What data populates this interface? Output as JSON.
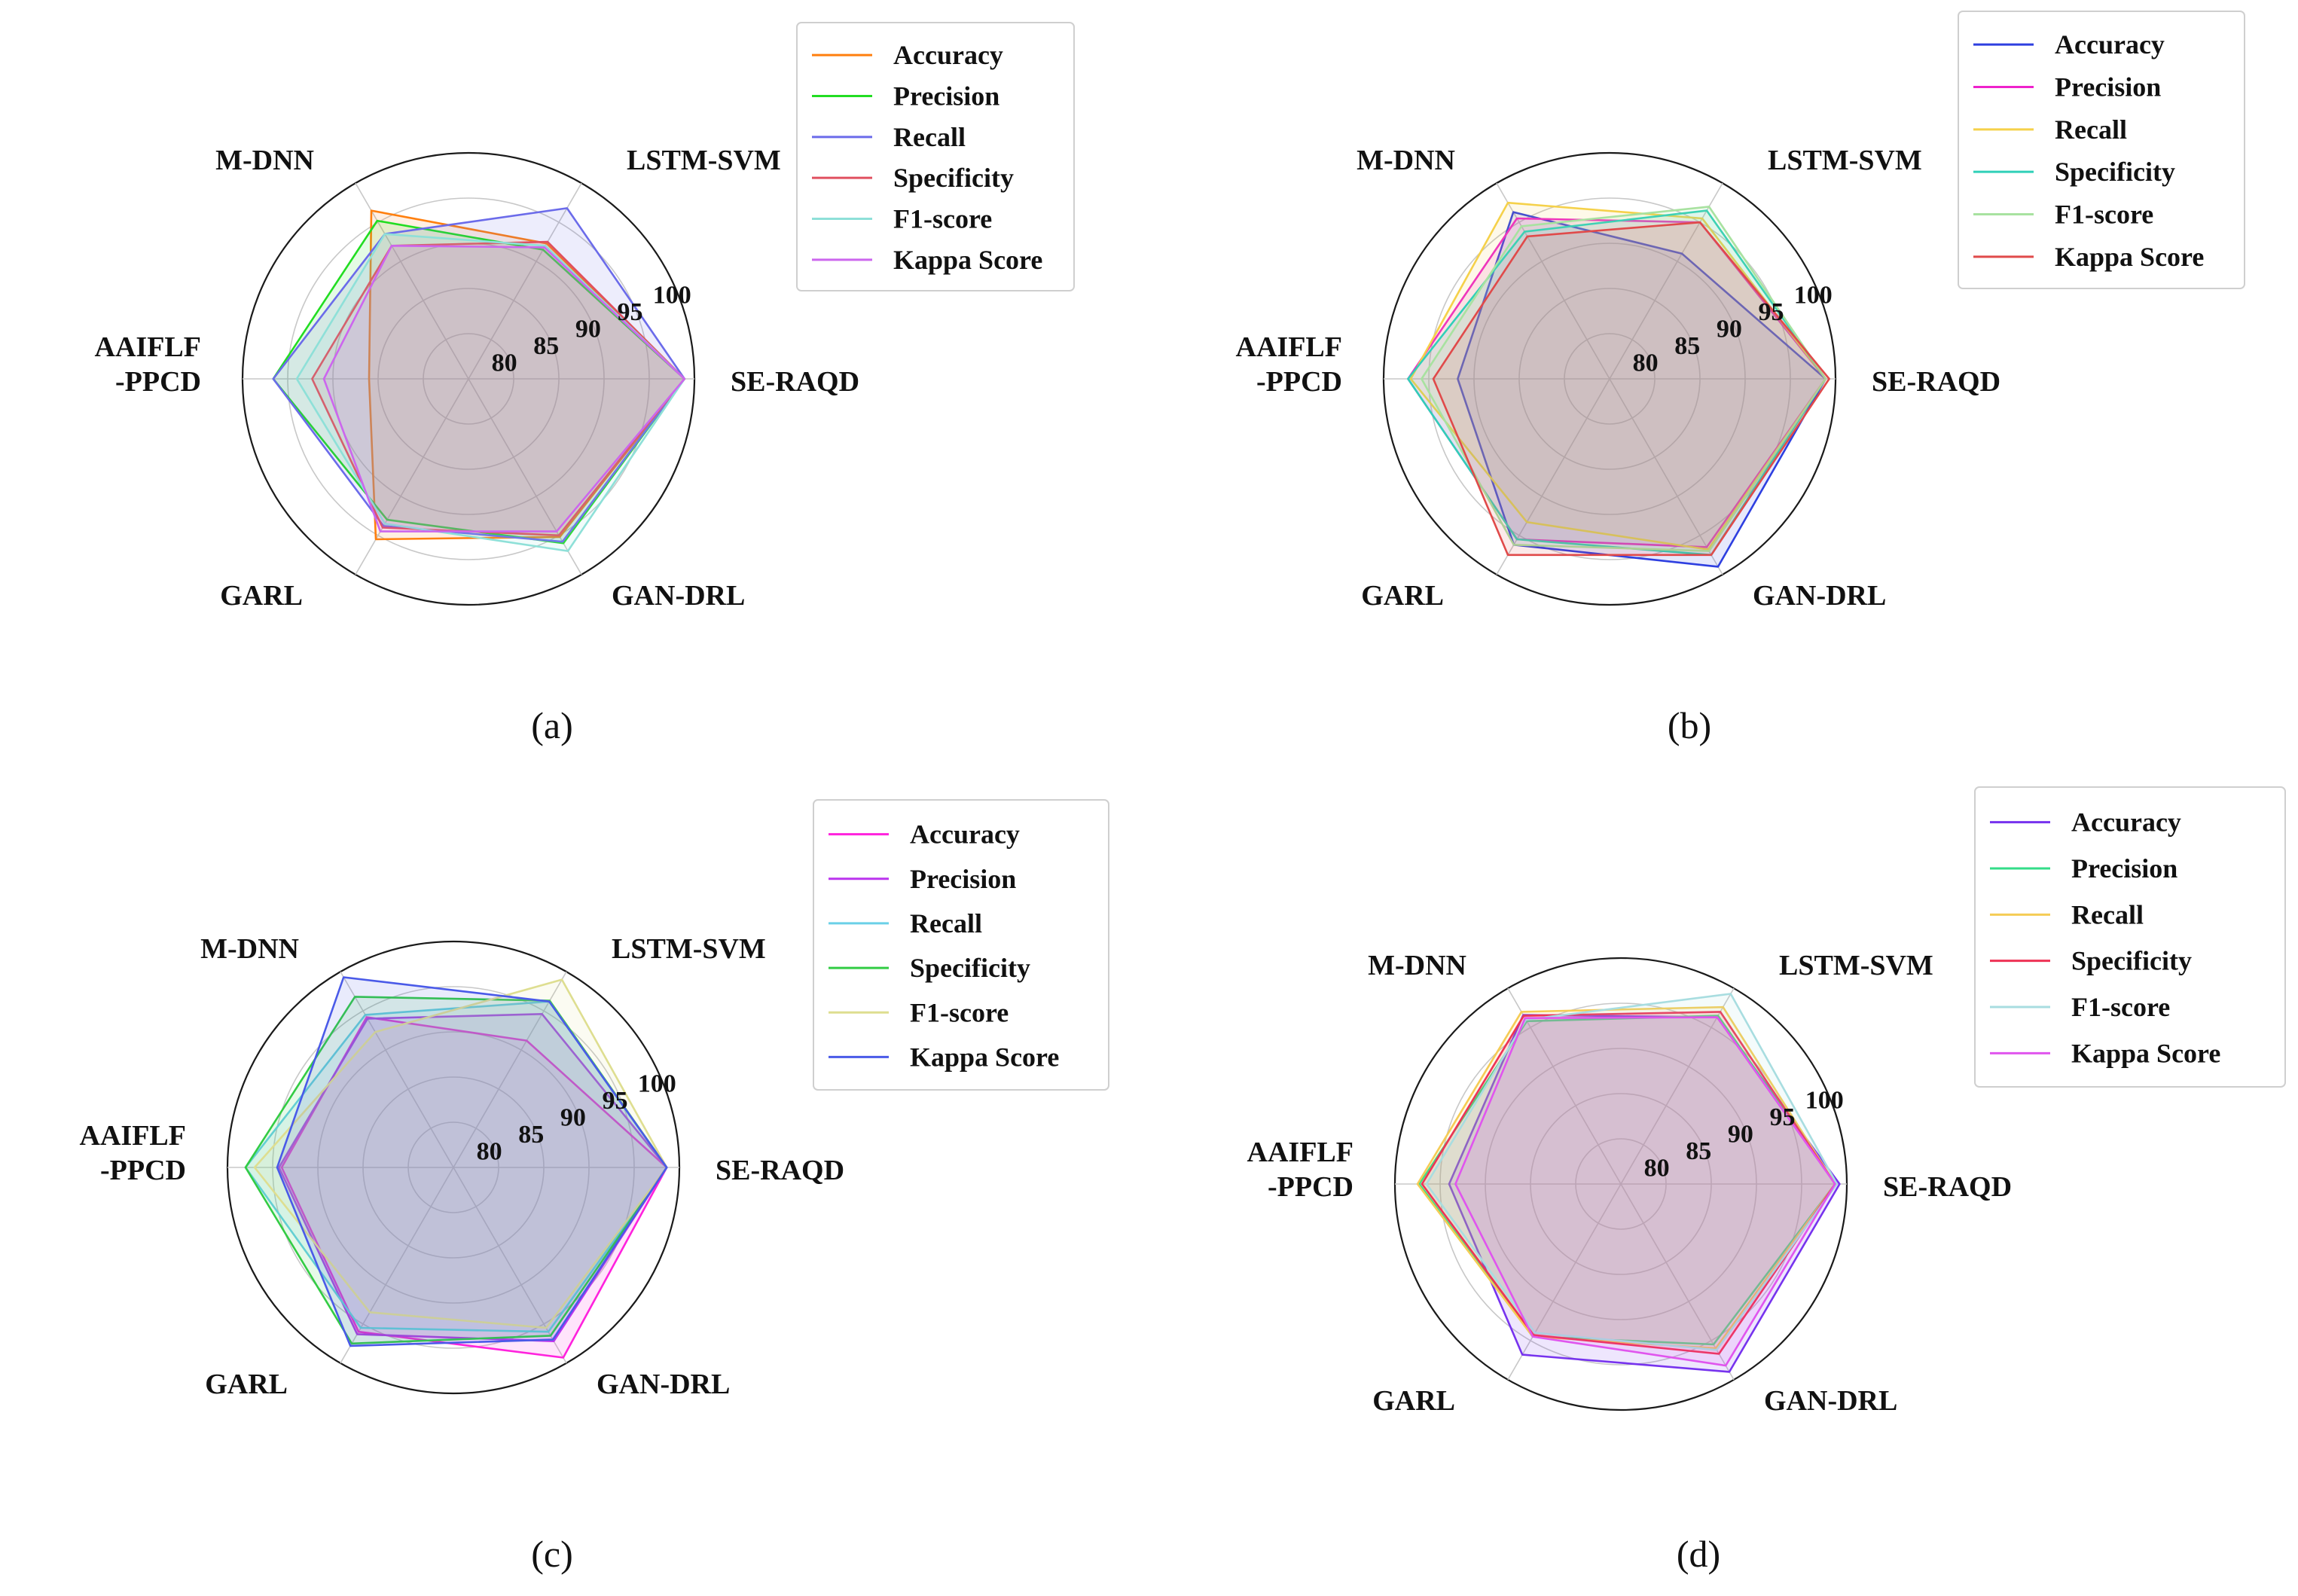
{
  "panels": [
    {
      "caption": "(a)",
      "chart_data": {
        "type": "radar",
        "categories": [
          "SE-RAQD",
          "LSTM-SVM",
          "M-DNN",
          "AAIFLF\n-PPCD",
          "GARL",
          "GAN-DRL"
        ],
        "rlim": [
          75,
          100
        ],
        "radial_tick_labels": [
          "80",
          "85",
          "90",
          "95",
          "100"
        ],
        "radial_tick_values": [
          80,
          85,
          90,
          95,
          100
        ],
        "grid": true,
        "legend_position": "top-right",
        "series": [
          {
            "name": "Accuracy",
            "color": "#ff7f0e",
            "values": [
              98.9,
              92.3,
              96.5,
              86.0,
              95.5,
              95.2
            ]
          },
          {
            "name": "Precision",
            "color": "#22dd22",
            "values": [
              98.9,
              91.5,
              95.2,
              96.6,
              93.0,
              96.0
            ]
          },
          {
            "name": "Recall",
            "color": "#6b6bea",
            "values": [
              98.9,
              96.8,
              93.5,
              96.6,
              93.8,
              95.8
            ]
          },
          {
            "name": "Specificity",
            "color": "#e05060",
            "values": [
              98.9,
              92.5,
              92.0,
              92.3,
              94.0,
              95.0
            ]
          },
          {
            "name": "F1-score",
            "color": "#8ee0d8",
            "values": [
              98.9,
              92.0,
              93.5,
              94.0,
              93.5,
              97.0
            ]
          },
          {
            "name": "Kappa Score",
            "color": "#cc66ee",
            "values": [
              98.9,
              91.8,
              92.0,
              91.0,
              94.5,
              94.5
            ]
          }
        ]
      }
    },
    {
      "caption": "(b)",
      "chart_data": {
        "type": "radar",
        "categories": [
          "SE-RAQD",
          "LSTM-SVM",
          "M-DNN",
          "AAIFLF\n-PPCD",
          "GARL",
          "GAN-DRL"
        ],
        "rlim": [
          75,
          100
        ],
        "radial_tick_labels": [
          "80",
          "85",
          "90",
          "95",
          "100"
        ],
        "radial_tick_values": [
          80,
          85,
          90,
          95,
          100
        ],
        "grid": true,
        "legend_position": "top-right",
        "series": [
          {
            "name": "Accuracy",
            "color": "#2e3fe0",
            "values": [
              98.9,
              91.0,
              96.3,
              91.8,
              96.2,
              99.0
            ]
          },
          {
            "name": "Precision",
            "color": "#ee22cc",
            "values": [
              98.9,
              95.0,
              95.5,
              97.3,
              95.5,
              96.5
            ]
          },
          {
            "name": "Recall",
            "color": "#f5d14a",
            "values": [
              98.9,
              95.5,
              97.5,
              97.0,
              93.3,
              96.8
            ]
          },
          {
            "name": "Specificity",
            "color": "#30d0b8",
            "values": [
              98.9,
              96.5,
              93.8,
              97.3,
              95.5,
              97.5
            ]
          },
          {
            "name": "F1-score",
            "color": "#a8e2a0",
            "values": [
              98.9,
              97.0,
              94.5,
              95.8,
              96.2,
              97.0
            ]
          },
          {
            "name": "Kappa Score",
            "color": "#e04a4a",
            "values": [
              99.3,
              95.0,
              93.2,
              94.5,
              97.5,
              97.5
            ]
          }
        ]
      }
    },
    {
      "caption": "(c)",
      "chart_data": {
        "type": "radar",
        "categories": [
          "SE-RAQD",
          "LSTM-SVM",
          "M-DNN",
          "AAIFLF\n-PPCD",
          "GARL",
          "GAN-DRL"
        ],
        "rlim": [
          75,
          100
        ],
        "radial_tick_labels": [
          "80",
          "85",
          "90",
          "95",
          "100"
        ],
        "radial_tick_values": [
          80,
          85,
          90,
          95,
          100
        ],
        "grid": true,
        "legend_position": "top-right",
        "series": [
          {
            "name": "Accuracy",
            "color": "#ff22dd",
            "values": [
              98.6,
              91.2,
              94.2,
              94.0,
              96.0,
              99.3
            ]
          },
          {
            "name": "Precision",
            "color": "#bb33ee",
            "values": [
              98.6,
              94.6,
              94.0,
              94.3,
              96.3,
              97.2
            ]
          },
          {
            "name": "Recall",
            "color": "#6bd0e8",
            "values": [
              98.6,
              96.2,
              94.5,
              98.0,
              95.5,
              96.0
            ]
          },
          {
            "name": "Specificity",
            "color": "#33cc44",
            "values": [
              98.6,
              96.3,
              96.8,
              98.0,
              97.5,
              96.5
            ]
          },
          {
            "name": "F1-score",
            "color": "#dede90",
            "values": [
              98.6,
              99.0,
              92.3,
              97.0,
              93.5,
              95.5
            ]
          },
          {
            "name": "Kappa Score",
            "color": "#4a5ae8",
            "values": [
              98.6,
              96.2,
              99.3,
              94.5,
              97.8,
              97.0
            ]
          }
        ]
      }
    },
    {
      "caption": "(d)",
      "chart_data": {
        "type": "radar",
        "categories": [
          "SE-RAQD",
          "LSTM-SVM",
          "M-DNN",
          "AAIFLF\n-PPCD",
          "GARL",
          "GAN-DRL"
        ],
        "rlim": [
          75,
          100
        ],
        "radial_tick_labels": [
          "80",
          "85",
          "90",
          "95",
          "100"
        ],
        "radial_tick_values": [
          80,
          85,
          90,
          95,
          100
        ],
        "grid": true,
        "legend_position": "top-right",
        "series": [
          {
            "name": "Accuracy",
            "color": "#7733ee",
            "values": [
              99.2,
              96.3,
              96.6,
              94.0,
              96.8,
              99.0
            ]
          },
          {
            "name": "Precision",
            "color": "#33dd88",
            "values": [
              98.7,
              96.5,
              95.8,
              97.3,
              94.5,
              95.5
            ]
          },
          {
            "name": "Recall",
            "color": "#f5cc55",
            "values": [
              98.7,
              97.6,
              97.0,
              97.5,
              94.5,
              96.0
            ]
          },
          {
            "name": "Specificity",
            "color": "#ee3355",
            "values": [
              98.7,
              97.0,
              96.5,
              97.0,
              94.3,
              96.7
            ]
          },
          {
            "name": "F1-score",
            "color": "#a8dde0",
            "values": [
              98.9,
              99.3,
              96.0,
              96.5,
              94.0,
              96.2
            ]
          },
          {
            "name": "Kappa Score",
            "color": "#e055ee",
            "values": [
              98.7,
              96.3,
              96.2,
              93.3,
              94.5,
              98.2
            ]
          }
        ]
      }
    }
  ]
}
